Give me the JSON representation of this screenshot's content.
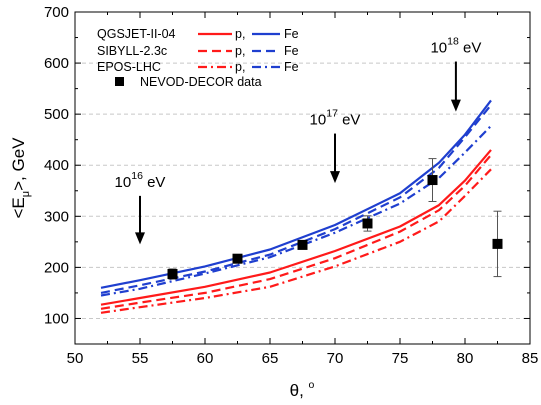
{
  "chart_data": {
    "type": "line",
    "xlabel": {
      "main": "θ, ",
      "degree": "o"
    },
    "ylabel": {
      "before": "<E",
      "sub": "μ",
      "after": ">, GeV"
    },
    "xlim": [
      50,
      85
    ],
    "ylim": [
      50,
      700
    ],
    "xticks": [
      "50",
      "55",
      "60",
      "65",
      "70",
      "75",
      "80",
      "85"
    ],
    "yticks": [
      "100",
      "200",
      "300",
      "400",
      "500",
      "600",
      "700"
    ],
    "grid": "horizontal dashed",
    "legend": {
      "placement": "top-left",
      "models": [
        "QGSJET-II-04",
        "SIBYLL-2.3c",
        "EPOS-LHC"
      ],
      "p_label": "p,",
      "fe_label": "Fe",
      "data_label": "NEVOD-DECOR data"
    },
    "colors": {
      "proton": "#ff1a1a",
      "iron": "#1f3fcf",
      "data": "#000000"
    },
    "series": [
      {
        "name": "QGSJET-II-04",
        "particle": "p",
        "style": "solid",
        "x": [
          52,
          55,
          60,
          65,
          70,
          75,
          78,
          80,
          82
        ],
        "y": [
          127,
          140,
          162,
          190,
          232,
          280,
          322,
          370,
          430
        ]
      },
      {
        "name": "SIBYLL-2.3c",
        "particle": "p",
        "style": "dash",
        "x": [
          52,
          55,
          60,
          65,
          70,
          75,
          78,
          80,
          82
        ],
        "y": [
          119,
          131,
          150,
          177,
          218,
          270,
          312,
          360,
          420
        ]
      },
      {
        "name": "EPOS-LHC",
        "particle": "p",
        "style": "dashdot",
        "x": [
          52,
          55,
          60,
          65,
          70,
          75,
          78,
          80,
          82
        ],
        "y": [
          111,
          122,
          140,
          162,
          202,
          250,
          290,
          340,
          392
        ]
      },
      {
        "name": "QGSJET-II-04",
        "particle": "Fe",
        "style": "solid",
        "x": [
          52,
          55,
          60,
          65,
          70,
          75,
          78,
          80,
          82
        ],
        "y": [
          160,
          175,
          202,
          235,
          283,
          345,
          405,
          460,
          527
        ]
      },
      {
        "name": "SIBYLL-2.3c",
        "particle": "Fe",
        "style": "dash",
        "x": [
          52,
          55,
          60,
          65,
          70,
          75,
          78,
          80,
          82
        ],
        "y": [
          150,
          165,
          192,
          225,
          275,
          337,
          395,
          455,
          518
        ]
      },
      {
        "name": "EPOS-LHC",
        "particle": "Fe",
        "style": "dashdot",
        "x": [
          52,
          55,
          60,
          65,
          70,
          75,
          78,
          80,
          82
        ],
        "y": [
          145,
          158,
          188,
          220,
          268,
          325,
          375,
          425,
          477
        ]
      }
    ],
    "data_points": {
      "name": "NEVOD-DECOR data",
      "points": [
        {
          "x": 57.5,
          "y": 187,
          "err": 10
        },
        {
          "x": 62.5,
          "y": 217,
          "err": 8
        },
        {
          "x": 67.5,
          "y": 244,
          "err": 8
        },
        {
          "x": 72.5,
          "y": 286,
          "err": 15
        },
        {
          "x": 77.5,
          "y": 371,
          "err": 42
        },
        {
          "x": 82.5,
          "y": 246,
          "err": 64
        }
      ]
    },
    "annotations": [
      {
        "base": "10",
        "exp": "16",
        "unit": " eV",
        "x": 55.0,
        "y_top": 340,
        "y_bottom": 245
      },
      {
        "base": "10",
        "exp": "17",
        "unit": " eV",
        "x": 70.0,
        "y_top": 462,
        "y_bottom": 365
      },
      {
        "base": "10",
        "exp": "18",
        "unit": " eV",
        "x": 79.3,
        "y_top": 603,
        "y_bottom": 505
      }
    ]
  }
}
